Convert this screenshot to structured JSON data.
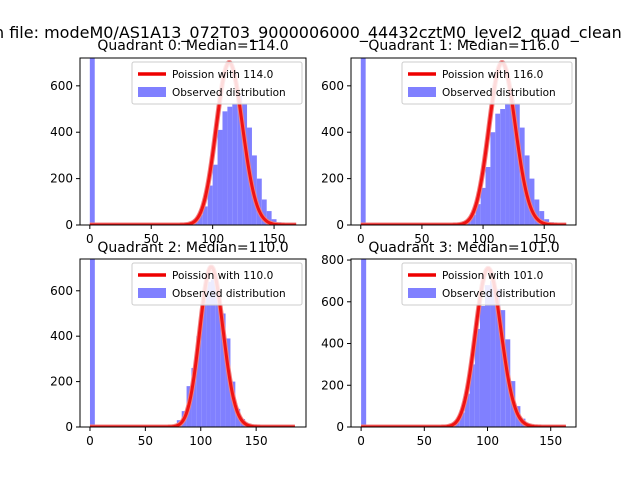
{
  "figure": {
    "suptitle": "n file: modeM0/AS1A13_072T03_9000006000_44432cztM0_level2_quad_clean"
  },
  "colors": {
    "hist": "#8080ff",
    "fit": "#ee0000",
    "fit_alpha": "#f08080"
  },
  "chart_data": [
    {
      "type": "bar",
      "title": "Quadrant 0: Median=114.0",
      "median": 114,
      "xlim": [
        -8,
        176
      ],
      "ylim": [
        0,
        720
      ],
      "xticks": [
        0,
        50,
        100,
        150
      ],
      "yticks": [
        0,
        200,
        400,
        600
      ],
      "bin_width": 4,
      "hist_spike": {
        "x": 0,
        "value": 720
      },
      "hist_x": [
        80,
        84,
        88,
        92,
        96,
        100,
        104,
        108,
        112,
        116,
        120,
        124,
        128,
        132,
        136,
        140,
        144,
        148,
        152,
        156
      ],
      "hist_values": [
        12,
        25,
        45,
        80,
        170,
        260,
        410,
        490,
        510,
        520,
        560,
        520,
        420,
        300,
        200,
        110,
        60,
        25,
        12,
        5
      ],
      "legend": [
        "Poission with 114.0",
        "Observed distribution"
      ],
      "fit_peak": 700,
      "fit_x_range": [
        0,
        168
      ]
    },
    {
      "type": "bar",
      "title": "Quadrant 1: Median=116.0",
      "median": 116,
      "xlim": [
        -8,
        176
      ],
      "ylim": [
        0,
        720
      ],
      "xticks": [
        0,
        50,
        100,
        150
      ],
      "yticks": [
        0,
        200,
        400,
        600
      ],
      "bin_width": 4,
      "hist_spike": {
        "x": 0,
        "value": 720
      },
      "hist_x": [
        82,
        86,
        90,
        94,
        98,
        102,
        106,
        110,
        114,
        118,
        122,
        126,
        130,
        134,
        138,
        142,
        146,
        150,
        154,
        158
      ],
      "hist_values": [
        10,
        22,
        45,
        90,
        160,
        250,
        400,
        480,
        500,
        520,
        540,
        520,
        420,
        300,
        200,
        110,
        60,
        25,
        12,
        5
      ],
      "legend": [
        "Poission with 116.0",
        "Observed distribution"
      ],
      "fit_peak": 700,
      "fit_x_range": [
        0,
        168
      ]
    },
    {
      "type": "bar",
      "title": "Quadrant 2: Median=110.0",
      "median": 110,
      "xlim": [
        -9,
        195
      ],
      "ylim": [
        0,
        740
      ],
      "xticks": [
        0,
        50,
        100,
        150
      ],
      "yticks": [
        0,
        200,
        400,
        600
      ],
      "bin_width": 4.4,
      "hist_spike": {
        "x": 0,
        "value": 740
      },
      "hist_x": [
        74,
        78.4,
        82.8,
        87.2,
        91.6,
        96,
        100.4,
        104.8,
        109.2,
        113.6,
        118,
        122.4,
        126.8,
        131.2,
        135.6,
        140,
        144.4
      ],
      "hist_values": [
        10,
        30,
        70,
        180,
        260,
        400,
        580,
        640,
        650,
        590,
        500,
        390,
        200,
        80,
        35,
        12,
        5
      ],
      "legend": [
        "Poission with 110.0",
        "Observed distribution"
      ],
      "fit_peak": 705,
      "fit_x_range": [
        0,
        185
      ]
    },
    {
      "type": "bar",
      "title": "Quadrant 3: Median=101.0",
      "median": 101,
      "xlim": [
        -8,
        170
      ],
      "ylim": [
        0,
        805
      ],
      "xticks": [
        0,
        50,
        100,
        150
      ],
      "yticks": [
        0,
        200,
        400,
        600,
        800
      ],
      "bin_width": 4,
      "hist_spike": {
        "x": 0,
        "value": 805
      },
      "hist_x": [
        70,
        74,
        78,
        82,
        86,
        90,
        94,
        98,
        102,
        106,
        110,
        114,
        118,
        122,
        126,
        130,
        134
      ],
      "hist_values": [
        10,
        30,
        70,
        160,
        300,
        470,
        580,
        680,
        700,
        660,
        560,
        420,
        220,
        100,
        40,
        15,
        5
      ],
      "legend": [
        "Poission with 101.0",
        "Observed distribution"
      ],
      "fit_peak": 760,
      "fit_x_range": [
        0,
        162
      ]
    }
  ]
}
